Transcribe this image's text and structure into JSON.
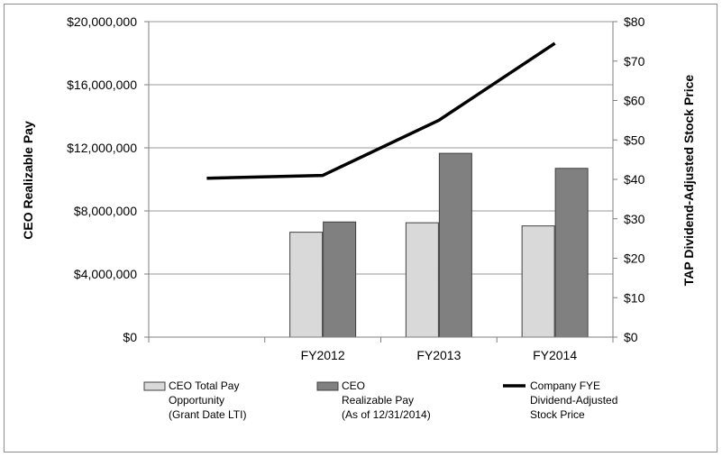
{
  "chart_data": {
    "type": "bar",
    "categories": [
      "",
      "FY2012",
      "FY2013",
      "FY2014"
    ],
    "series": [
      {
        "name": "CEO Total Pay Opportunity (Grant Date LTI)",
        "legend_lines": [
          "CEO Total Pay",
          "Opportunity",
          "(Grant Date LTI)"
        ],
        "kind": "bar",
        "axis": "left",
        "color": "#d9d9d9",
        "values": [
          null,
          6650000,
          7250000,
          7050000
        ]
      },
      {
        "name": "CEO Realizable Pay (As of 12/31/2014)",
        "legend_lines": [
          "CEO",
          "Realizable Pay",
          "(As of 12/31/2014)"
        ],
        "kind": "bar",
        "axis": "left",
        "color": "#808080",
        "values": [
          null,
          7300000,
          11650000,
          10700000
        ]
      },
      {
        "name": "Company FYE Dividend-Adjusted Stock Price",
        "legend_lines": [
          "Company FYE",
          "Dividend-Adjusted",
          "Stock Price"
        ],
        "kind": "line",
        "axis": "right",
        "color": "#000000",
        "values": [
          40.3,
          41.0,
          55.0,
          74.5
        ]
      }
    ],
    "y_left": {
      "label": "CEO Realizable Pay",
      "lim": [
        0,
        20000000
      ],
      "ticks": [
        0,
        4000000,
        8000000,
        12000000,
        16000000,
        20000000
      ],
      "tick_labels": [
        "$0",
        "$4,000,000",
        "$8,000,000",
        "$12,000,000",
        "$16,000,000",
        "$20,000,000"
      ]
    },
    "y_right": {
      "label": "TAP Dividend-Adjusted Stock Price",
      "lim": [
        0,
        80
      ],
      "ticks": [
        0,
        10,
        20,
        30,
        40,
        50,
        60,
        70,
        80
      ],
      "tick_labels": [
        "$0",
        "$10",
        "$20",
        "$30",
        "$40",
        "$50",
        "$60",
        "$70",
        "$80"
      ]
    },
    "grid": true,
    "legend_position": "bottom"
  }
}
